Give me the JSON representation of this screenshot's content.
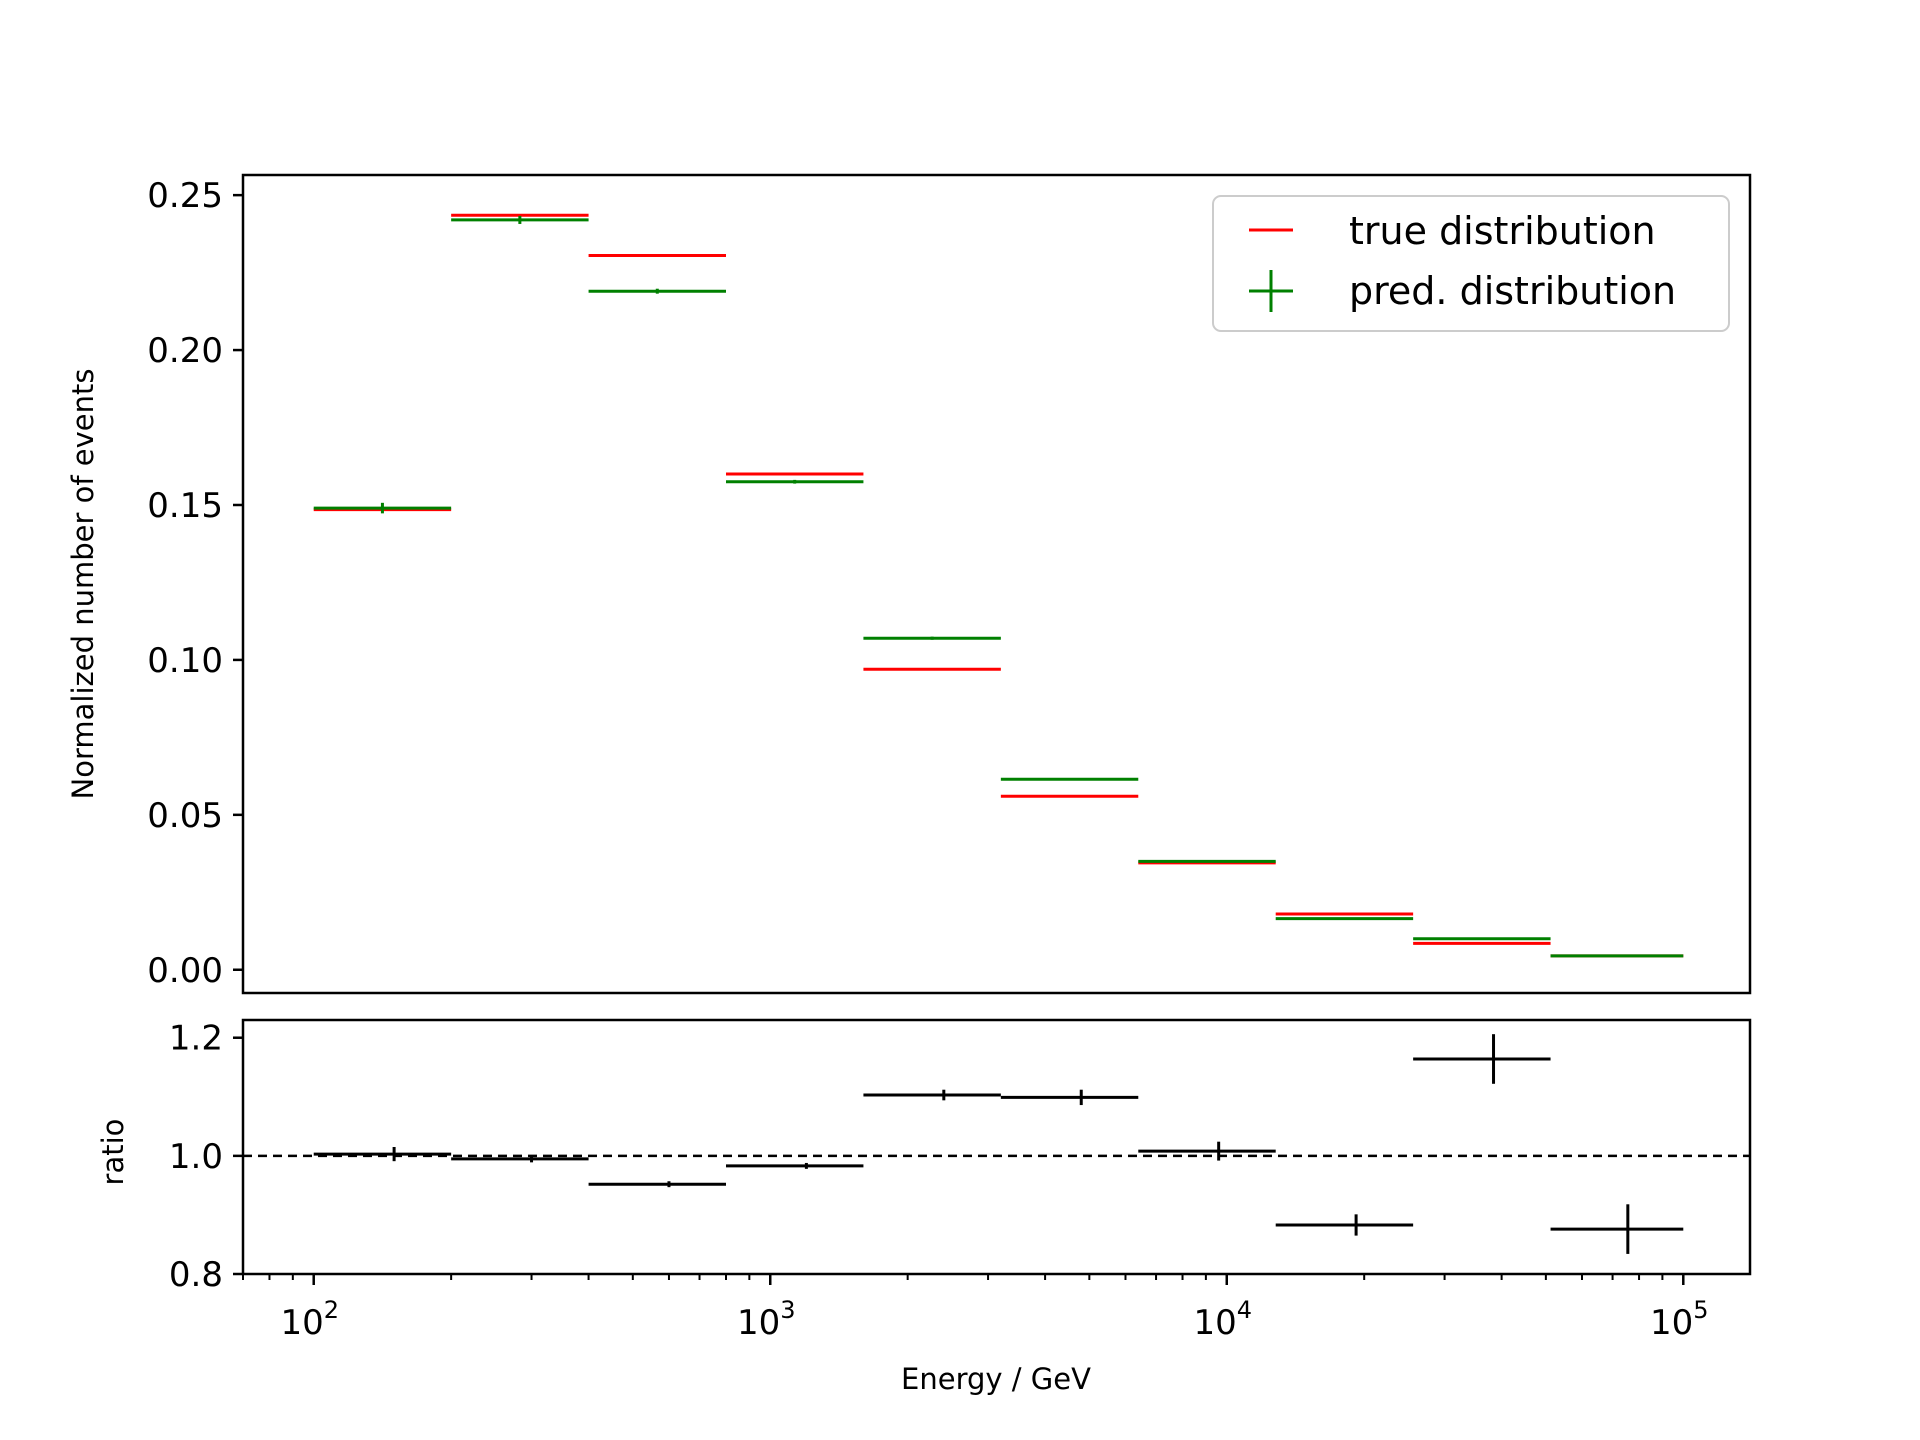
{
  "chart_data": [
    {
      "type": "line",
      "panel": "main",
      "title": "",
      "xlabel": "",
      "ylabel": "Normalized number of events",
      "xscale": "log",
      "xlim": [
        70,
        140000
      ],
      "ylim": [
        -0.0075,
        0.2565
      ],
      "yticks": [
        0,
        0.05,
        0.1,
        0.15,
        0.2,
        0.25
      ],
      "ytick_labels": [
        "0.00",
        "0.05",
        "0.10",
        "0.15",
        "0.20",
        "0.25"
      ],
      "legend": {
        "position": "top-right"
      },
      "bins": [
        [
          100,
          200
        ],
        [
          200,
          400
        ],
        [
          400,
          800
        ],
        [
          800,
          1600
        ],
        [
          1600,
          3200
        ],
        [
          3200,
          6400
        ],
        [
          6400,
          12800
        ],
        [
          12800,
          25600
        ],
        [
          25600,
          51200
        ],
        [
          51200,
          100000
        ]
      ],
      "series": [
        {
          "name": "true distribution",
          "color": "#ff0000",
          "marker": "hline",
          "values": [
            0.1485,
            0.2435,
            0.2305,
            0.16,
            0.097,
            0.056,
            0.0345,
            0.018,
            0.0085,
            0.0045
          ]
        },
        {
          "name": "pred. distribution",
          "color": "#008000",
          "marker": "errorbar",
          "values": [
            0.149,
            0.242,
            0.219,
            0.1575,
            0.107,
            0.0615,
            0.035,
            0.0165,
            0.01,
            0.0045
          ],
          "yerr": [
            0.0017,
            0.0013,
            0.0008,
            0.0006,
            0.0005,
            0.0003,
            0.0002,
            0.0001,
            0.0001,
            5e-05
          ]
        }
      ]
    },
    {
      "type": "scatter",
      "panel": "ratio",
      "title": "",
      "xlabel": "Energy / GeV",
      "ylabel": "ratio",
      "xscale": "log",
      "xlim": [
        70,
        140000
      ],
      "ylim": [
        0.8,
        1.23
      ],
      "yticks": [
        0.8,
        1.0,
        1.2
      ],
      "ytick_labels": [
        "0.8",
        "1.0",
        "1.2"
      ],
      "xticks": [
        100,
        1000,
        10000,
        100000
      ],
      "xtick_labels": [
        {
          "base": "10",
          "exp": "2"
        },
        {
          "base": "10",
          "exp": "3"
        },
        {
          "base": "10",
          "exp": "4"
        },
        {
          "base": "10",
          "exp": "5"
        }
      ],
      "reference_line": 1.0,
      "series": [
        {
          "name": "",
          "color": "#000000",
          "marker": "errorbar",
          "x": [
            150,
            300,
            600,
            1200,
            2400,
            4800,
            9600,
            19200,
            38400,
            75600
          ],
          "values": [
            1.003,
            0.995,
            0.952,
            0.983,
            1.103,
            1.099,
            1.008,
            0.883,
            1.164,
            0.876
          ],
          "yerr": [
            0.012,
            0.006,
            0.005,
            0.005,
            0.009,
            0.013,
            0.016,
            0.018,
            0.042,
            0.042
          ]
        }
      ]
    }
  ]
}
